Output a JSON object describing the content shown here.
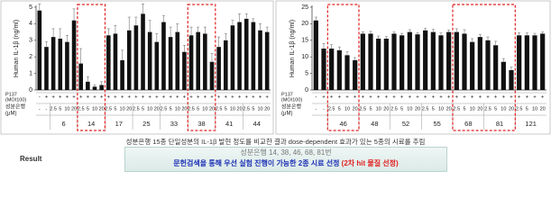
{
  "chart_data": [
    {
      "type": "bar",
      "ylabel": "Human IL-1β (ng/ml)",
      "color": "#111111",
      "ylim": [
        0,
        5
      ],
      "yticks": [
        0,
        1,
        2,
        3,
        4,
        5
      ],
      "p137_label": [
        "P137",
        "(MOI100)"
      ],
      "dose_label": [
        "성분은행",
        "(μM)"
      ],
      "groups": [
        "6",
        "14",
        "17",
        "25",
        "33",
        "38",
        "41",
        "44"
      ],
      "highlight": [
        1,
        5
      ],
      "p137": [
        "-",
        "+",
        "+",
        "+",
        "+",
        "+",
        "+",
        "+",
        "+",
        "+",
        "+",
        "+",
        "+",
        "+",
        "+",
        "+",
        "+",
        "+",
        "+",
        "+",
        "+",
        "+",
        "+",
        "+",
        "+",
        "+",
        "+",
        "+",
        "+",
        "+",
        "+",
        "+",
        "+",
        "+"
      ],
      "doses": [
        "-",
        "-",
        "2.5",
        "5",
        "10",
        "20",
        "2.5",
        "5",
        "10",
        "20",
        "2.5",
        "5",
        "10",
        "20",
        "2.5",
        "5",
        "10",
        "20",
        "2.5",
        "5",
        "10",
        "20",
        "2.5",
        "5",
        "10",
        "20",
        "2.5",
        "5",
        "10",
        "20",
        "2.5",
        "5",
        "10",
        "20"
      ],
      "values": [
        4.8,
        2.6,
        3.2,
        3.1,
        2.9,
        4.2,
        1.6,
        0.5,
        0.2,
        0.3,
        3.3,
        3.4,
        1.8,
        3.6,
        3.9,
        4.6,
        3.5,
        2.9,
        4.1,
        3.2,
        3.5,
        2.3,
        3.3,
        3.5,
        3.4,
        1.7,
        2.6,
        3.0,
        3.9,
        4.1,
        4.3,
        4.1,
        3.6,
        3.5
      ],
      "errors": [
        0.4,
        0.3,
        0.5,
        0.6,
        0.4,
        0.7,
        0.9,
        0.3,
        0.1,
        0.2,
        0.4,
        0.5,
        0.6,
        0.8,
        0.5,
        0.6,
        0.7,
        0.5,
        0.4,
        0.6,
        0.5,
        0.4,
        0.5,
        0.3,
        0.4,
        0.5,
        0.6,
        0.4,
        0.3,
        0.5,
        0.3,
        0.2,
        0.4,
        0.3
      ]
    },
    {
      "type": "bar",
      "ylabel": "Human IL-1β (ng/ml)",
      "color": "#111111",
      "ylim": [
        0,
        25
      ],
      "yticks": [
        0,
        5,
        10,
        15,
        20,
        25
      ],
      "p137_label": [
        "P137",
        "(MOI100)"
      ],
      "dose_label": [
        "성분은행",
        "(μM)"
      ],
      "groups": [
        "46",
        "48",
        "52",
        "55",
        "68",
        "81",
        "121"
      ],
      "highlight": [
        0,
        4,
        5
      ],
      "p137": [
        "-",
        "+",
        "+",
        "+",
        "+",
        "+",
        "+",
        "+",
        "+",
        "+",
        "+",
        "+",
        "+",
        "+",
        "+",
        "+",
        "+",
        "+",
        "+",
        "+",
        "+",
        "+",
        "+",
        "+",
        "+",
        "+",
        "+",
        "+",
        "+",
        "+"
      ],
      "doses": [
        "-",
        "-",
        "2.5",
        "5",
        "10",
        "20",
        "2.5",
        "5",
        "10",
        "20",
        "2.5",
        "5",
        "10",
        "20",
        "2.5",
        "5",
        "10",
        "20",
        "2.5",
        "5",
        "10",
        "20",
        "2.5",
        "5",
        "10",
        "20",
        "2.5",
        "5",
        "10",
        "20"
      ],
      "values": [
        21,
        12.5,
        12.5,
        12,
        10.5,
        9,
        17,
        17,
        15.5,
        15.5,
        17,
        16.5,
        17.5,
        16.8,
        18,
        17.5,
        16.5,
        17.5,
        17.5,
        17,
        14.5,
        16,
        15,
        13.5,
        8.5,
        6,
        16.5,
        16.5,
        16.5,
        17
      ],
      "errors": [
        1,
        1.5,
        1.2,
        1,
        1,
        0.8,
        0.6,
        0.7,
        0.8,
        0.6,
        0.5,
        0.6,
        0.7,
        0.5,
        0.6,
        0.8,
        0.7,
        0.6,
        1,
        1.2,
        1,
        0.8,
        1,
        1.2,
        1,
        0.9,
        0.8,
        0.7,
        0.6,
        0.5
      ]
    }
  ],
  "caption": "성분은행 15종 단일성분의 IL-1β 발현 정도를 비교한 결과 dose-dependent 효과가 있는 5종의 시료를 추림",
  "result": {
    "label": "Result",
    "line1": "성분은행 14, 38, 46, 68, 81번",
    "line2_blue": "문헌검색을 통해 우선 실험 진행이 가능한 2종 시료 선정 ",
    "line2_red": "(2차 hit 물질 선정)"
  }
}
